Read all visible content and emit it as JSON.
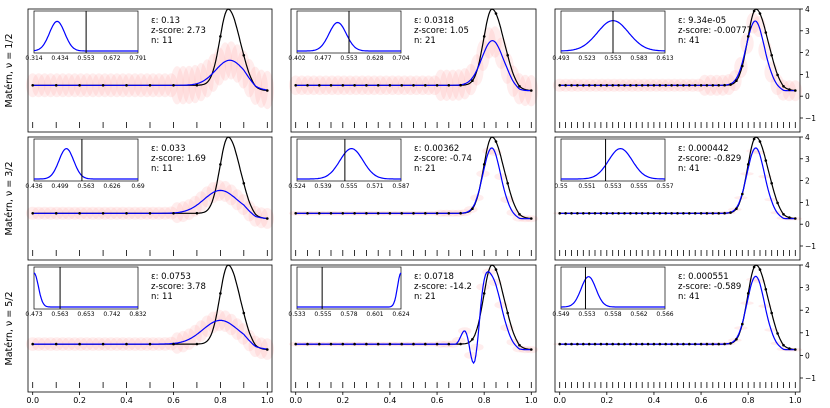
{
  "chart_data": {
    "type": "line",
    "row_labels": [
      "Matérn, ν = 1/2",
      "Matérn, ν = 3/2",
      "Matérn, ν = 5/2"
    ],
    "x_ticks": [
      "0.0",
      "0.2",
      "0.4",
      "0.6",
      "0.8",
      "1.0"
    ],
    "y_ticks": [
      "−1",
      "0",
      "1",
      "2",
      "3",
      "4"
    ],
    "xlim": [
      -0.02,
      1.02
    ],
    "ylim": [
      -1.0,
      4.0
    ],
    "ε_prefix": "ε: ",
    "z_prefix": "z-score: ",
    "n_prefix": "n: ",
    "panels": [
      {
        "row": 0,
        "col": 0,
        "n": 11,
        "epsilon": "0.13",
        "z": "2.73",
        "inset_ticks": [
          "0.314",
          "0.434",
          "0.553",
          "0.672",
          "0.791"
        ],
        "inset_range": [
          0.314,
          0.791
        ],
        "inset_peak": 0.42,
        "inset_sd": 0.035,
        "inset_line": 0.553,
        "inset_peak_height": 0.78,
        "fit_peak": 1.65,
        "fit_center": 0.84,
        "fit_width": 0.06,
        "uncertainty": 0.55
      },
      {
        "row": 0,
        "col": 1,
        "n": 21,
        "epsilon": "0.0318",
        "z": "1.05",
        "inset_ticks": [
          "0.402",
          "0.477",
          "0.553",
          "0.628",
          "0.704"
        ],
        "inset_range": [
          0.402,
          0.704
        ],
        "inset_peak": 0.52,
        "inset_sd": 0.025,
        "inset_line": 0.553,
        "inset_peak_height": 0.75,
        "fit_peak": 2.55,
        "fit_center": 0.835,
        "fit_width": 0.045,
        "uncertainty": 0.45
      },
      {
        "row": 0,
        "col": 2,
        "n": 41,
        "epsilon": "9.34e-05",
        "z": "-0.00777",
        "inset_ticks": [
          "0.493",
          "0.523",
          "0.553",
          "0.583",
          "0.613"
        ],
        "inset_range": [
          0.493,
          0.613
        ],
        "inset_peak": 0.553,
        "inset_sd": 0.018,
        "inset_line": 0.553,
        "inset_peak_height": 0.8,
        "fit_peak": 3.45,
        "fit_center": 0.83,
        "fit_width": 0.038,
        "uncertainty": 0.3
      },
      {
        "row": 1,
        "col": 0,
        "n": 11,
        "epsilon": "0.033",
        "z": "1.69",
        "inset_ticks": [
          "0.436",
          "0.499",
          "0.563",
          "0.626",
          "0.69"
        ],
        "inset_range": [
          0.436,
          0.69
        ],
        "inset_peak": 0.515,
        "inset_sd": 0.018,
        "inset_line": 0.553,
        "inset_peak_height": 0.8,
        "fit_peak": 1.55,
        "fit_center": 0.8,
        "fit_width": 0.07,
        "uncertainty": 0.3
      },
      {
        "row": 1,
        "col": 1,
        "n": 21,
        "epsilon": "0.00362",
        "z": "-0.74",
        "inset_ticks": [
          "0.524",
          "0.539",
          "0.555",
          "0.571",
          "0.587"
        ],
        "inset_range": [
          0.524,
          0.587
        ],
        "inset_peak": 0.557,
        "inset_sd": 0.007,
        "inset_line": 0.553,
        "inset_peak_height": 0.8,
        "fit_peak": 3.5,
        "fit_center": 0.832,
        "fit_width": 0.037,
        "uncertainty": 0.1
      },
      {
        "row": 1,
        "col": 2,
        "n": 41,
        "epsilon": "0.000442",
        "z": "-0.829",
        "inset_ticks": [
          "0.55",
          "0.551",
          "0.553",
          "0.555",
          "0.557"
        ],
        "inset_range": [
          0.55,
          0.557
        ],
        "inset_peak": 0.554,
        "inset_sd": 0.0008,
        "inset_line": 0.553,
        "inset_peak_height": 0.8,
        "fit_peak": 3.5,
        "fit_center": 0.832,
        "fit_width": 0.037,
        "uncertainty": 0.05
      },
      {
        "row": 2,
        "col": 0,
        "n": 11,
        "epsilon": "0.0753",
        "z": "3.78",
        "inset_ticks": [
          "0.473",
          "0.563",
          "0.653",
          "0.742",
          "0.832"
        ],
        "inset_range": [
          0.473,
          0.832
        ],
        "inset_peak": 0.473,
        "inset_sd": 0.015,
        "inset_line": 0.563,
        "inset_peak_height": 0.9,
        "fit_peak": 1.55,
        "fit_center": 0.8,
        "fit_width": 0.075,
        "uncertainty": 0.3
      },
      {
        "row": 2,
        "col": 1,
        "n": 21,
        "epsilon": "0.0718",
        "z": "-14.2",
        "inset_ticks": [
          "0.533",
          "0.555",
          "0.578",
          "0.601",
          "0.624"
        ],
        "inset_range": [
          0.533,
          0.624
        ],
        "inset_peak": 0.624,
        "inset_sd": 0.003,
        "inset_line": 0.555,
        "inset_peak_height": 0.9,
        "fit_peak": 3.5,
        "fit_center": 0.83,
        "fit_width": 0.04,
        "uncertainty": 0.1,
        "oscillatory": true
      },
      {
        "row": 2,
        "col": 2,
        "n": 41,
        "epsilon": "0.000551",
        "z": "-0.589",
        "inset_ticks": [
          "0.549",
          "0.553",
          "0.558",
          "0.562",
          "0.566"
        ],
        "inset_range": [
          0.549,
          0.566
        ],
        "inset_peak": 0.5535,
        "inset_sd": 0.0012,
        "inset_line": 0.553,
        "inset_peak_height": 0.8,
        "fit_peak": 3.5,
        "fit_center": 0.832,
        "fit_width": 0.037,
        "uncertainty": 0.05
      }
    ],
    "truth": {
      "baseline": 0.5,
      "peak": 3.5,
      "center": 0.833,
      "width": 0.035
    },
    "colors": {
      "truth": "#000000",
      "fit": "#0000ff",
      "band": "#ff9999",
      "axes": "#000000"
    }
  }
}
